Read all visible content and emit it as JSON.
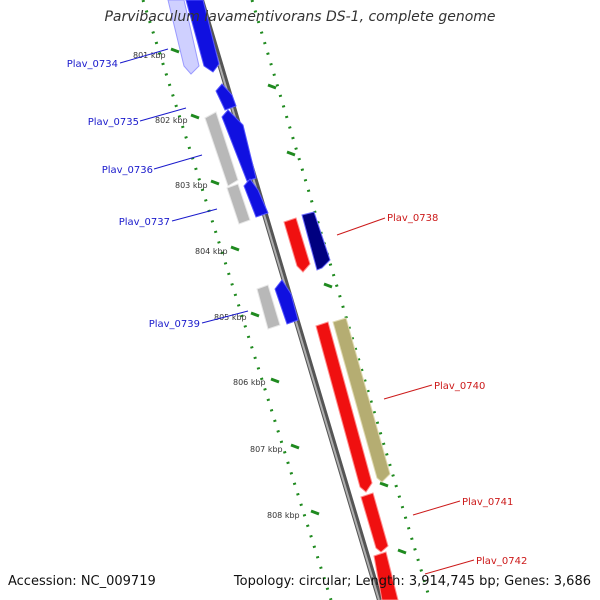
{
  "title": "Parvibaculum lavamentivorans DS-1, complete genome",
  "footer": {
    "accession": "Accession: NC_009719",
    "summary": "Topology: circular; Length: 3,914,745 bp; Genes: 3,686"
  },
  "colors": {
    "backbone": "#8c8c8c",
    "tick": "#1f8a1f",
    "forward_label": "#1a1acc",
    "reverse_label": "#cc1a1a",
    "cds_forward": "#1010e0",
    "cds_reverse": "#f01010",
    "cds_other_forward": "#b8b8b8",
    "cds_other_reverse": "#000080",
    "cds_khaki": "#b5ad72"
  },
  "kbp_ticks": [
    "801 kbp",
    "802 kbp",
    "803 kbp",
    "804 kbp",
    "805 kbp",
    "806 kbp",
    "807 kbp",
    "808 kbp"
  ],
  "features": {
    "forward": [
      {
        "label": "Plav_0734"
      },
      {
        "label": "Plav_0735"
      },
      {
        "label": "Plav_0736"
      },
      {
        "label": "Plav_0737"
      },
      {
        "label": "Plav_0739"
      }
    ],
    "reverse": [
      {
        "label": "Plav_0738"
      },
      {
        "label": "Plav_0740"
      },
      {
        "label": "Plav_0741"
      },
      {
        "label": "Plav_0742"
      }
    ]
  }
}
